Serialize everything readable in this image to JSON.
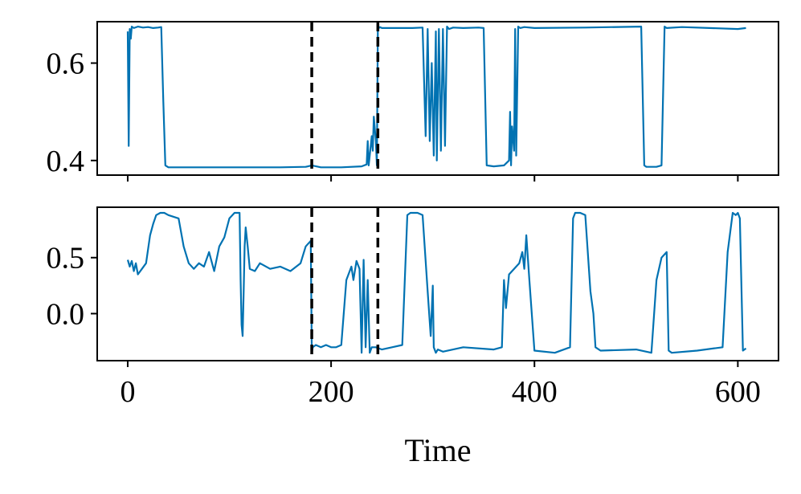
{
  "colors": {
    "series": "#0072B2",
    "vline": "#000000"
  },
  "chart_data": [
    {
      "type": "line",
      "title": "",
      "xlabel": "",
      "ylabel": "",
      "xlim": [
        -30,
        640
      ],
      "ylim": [
        0.37,
        0.685
      ],
      "xticks": [
        0,
        200,
        400,
        600
      ],
      "yticks": [
        0.4,
        0.6
      ],
      "ytick_labels": [
        "0.4",
        "0.6"
      ],
      "show_xtick_labels": false,
      "vlines": [
        181,
        246
      ],
      "series": [
        {
          "x": [
            0,
            1,
            2,
            3,
            4,
            6,
            10,
            15,
            20,
            25,
            30,
            33,
            35,
            37,
            40,
            50,
            80,
            100,
            120,
            150,
            175,
            181,
            190,
            210,
            230,
            235,
            236,
            237,
            238,
            240,
            241,
            242,
            244,
            245,
            246,
            248,
            250,
            280,
            290,
            293,
            295,
            297,
            299,
            301,
            303,
            304,
            306,
            308,
            310,
            312,
            314,
            316,
            320,
            330,
            345,
            350,
            353,
            360,
            370,
            375,
            376,
            377,
            378,
            380,
            381,
            382,
            384,
            386,
            390,
            400,
            450,
            505,
            508,
            510,
            520,
            525,
            528,
            530,
            545,
            600,
            608
          ],
          "y": [
            0.665,
            0.43,
            0.67,
            0.65,
            0.675,
            0.672,
            0.675,
            0.673,
            0.674,
            0.672,
            0.673,
            0.674,
            0.52,
            0.39,
            0.386,
            0.386,
            0.386,
            0.386,
            0.386,
            0.386,
            0.387,
            0.39,
            0.386,
            0.386,
            0.388,
            0.392,
            0.44,
            0.39,
            0.41,
            0.45,
            0.42,
            0.49,
            0.44,
            0.39,
            0.67,
            0.674,
            0.672,
            0.672,
            0.673,
            0.45,
            0.67,
            0.44,
            0.6,
            0.41,
            0.665,
            0.4,
            0.67,
            0.42,
            0.67,
            0.43,
            0.675,
            0.67,
            0.673,
            0.672,
            0.673,
            0.672,
            0.39,
            0.388,
            0.39,
            0.4,
            0.5,
            0.39,
            0.47,
            0.42,
            0.67,
            0.41,
            0.675,
            0.672,
            0.674,
            0.672,
            0.673,
            0.675,
            0.39,
            0.387,
            0.387,
            0.39,
            0.675,
            0.672,
            0.674,
            0.67,
            0.672
          ]
        }
      ]
    },
    {
      "type": "line",
      "title": "",
      "xlabel": "Time",
      "ylabel": "",
      "xlim": [
        -30,
        640
      ],
      "ylim": [
        -0.42,
        0.95
      ],
      "xticks": [
        0,
        200,
        400,
        600
      ],
      "xtick_labels": [
        "0",
        "200",
        "400",
        "600"
      ],
      "yticks": [
        0.0,
        0.5
      ],
      "ytick_labels": [
        "0.0",
        "0.5"
      ],
      "vlines": [
        181,
        246
      ],
      "series": [
        {
          "x": [
            0,
            2,
            4,
            6,
            8,
            10,
            14,
            18,
            22,
            25,
            28,
            32,
            36,
            40,
            50,
            55,
            60,
            65,
            70,
            75,
            80,
            85,
            90,
            95,
            100,
            105,
            108,
            110,
            111,
            112,
            113,
            114,
            115,
            116,
            118,
            120,
            125,
            130,
            140,
            150,
            160,
            170,
            175,
            180,
            181,
            182,
            185,
            190,
            195,
            200,
            205,
            210,
            215,
            220,
            222,
            225,
            228,
            230,
            232,
            234,
            236,
            238,
            240,
            244,
            250,
            260,
            270,
            275,
            278,
            285,
            290,
            295,
            298,
            300,
            301,
            303,
            305,
            310,
            330,
            360,
            368,
            370,
            372,
            375,
            380,
            385,
            388,
            390,
            392,
            395,
            400,
            420,
            435,
            438,
            440,
            445,
            450,
            455,
            458,
            460,
            465,
            500,
            515,
            520,
            525,
            530,
            532,
            535,
            560,
            585,
            590,
            595,
            598,
            600,
            602,
            605,
            608
          ],
          "y": [
            0.48,
            0.42,
            0.47,
            0.38,
            0.45,
            0.35,
            0.4,
            0.45,
            0.7,
            0.8,
            0.88,
            0.9,
            0.9,
            0.88,
            0.85,
            0.6,
            0.45,
            0.4,
            0.45,
            0.42,
            0.55,
            0.38,
            0.6,
            0.68,
            0.85,
            0.9,
            0.9,
            0.9,
            0.3,
            -0.1,
            -0.2,
            0.2,
            0.6,
            0.77,
            0.6,
            0.4,
            0.38,
            0.45,
            0.4,
            0.42,
            0.38,
            0.45,
            0.6,
            0.65,
            -0.35,
            -0.3,
            -0.28,
            -0.3,
            -0.28,
            -0.3,
            -0.3,
            -0.28,
            0.3,
            0.42,
            0.3,
            0.47,
            0.4,
            -0.35,
            0.48,
            -0.3,
            0.3,
            -0.35,
            -0.3,
            -0.3,
            -0.32,
            -0.3,
            -0.28,
            0.88,
            0.9,
            0.9,
            0.88,
            0.2,
            -0.2,
            0.25,
            -0.3,
            -0.35,
            -0.32,
            -0.34,
            -0.3,
            -0.32,
            -0.3,
            0.3,
            0.05,
            0.35,
            0.4,
            0.45,
            0.55,
            0.4,
            0.7,
            0.3,
            -0.33,
            -0.35,
            -0.3,
            0.85,
            0.9,
            0.9,
            0.88,
            0.2,
            0.0,
            -0.3,
            -0.33,
            -0.32,
            -0.35,
            0.3,
            0.5,
            0.55,
            -0.33,
            -0.35,
            -0.33,
            -0.3,
            0.55,
            0.9,
            0.88,
            0.9,
            0.85,
            -0.33,
            -0.31
          ]
        }
      ]
    }
  ]
}
